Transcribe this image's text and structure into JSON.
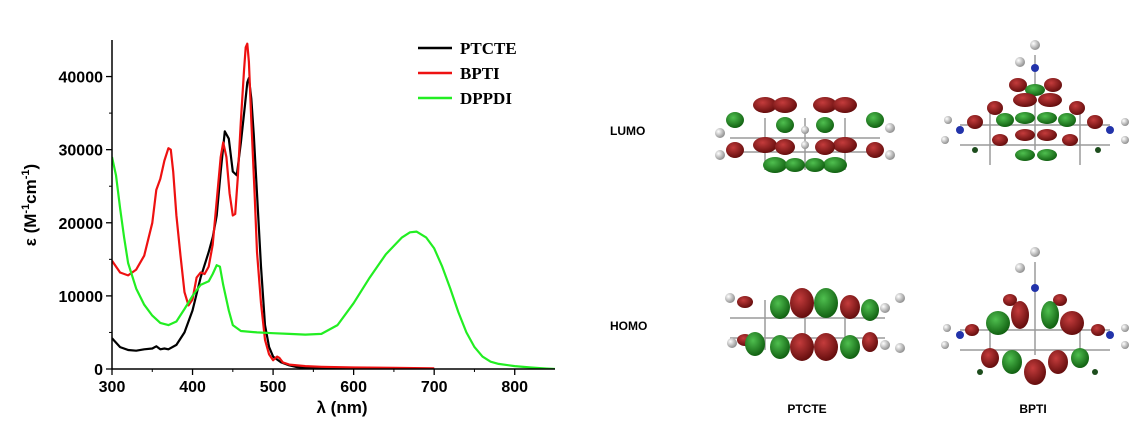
{
  "chart_data": {
    "type": "line",
    "xlabel_symbol": "λ",
    "xlabel_unit": " (nm)",
    "ylabel_symbol": "ε",
    "ylabel_parts": [
      "(M",
      "-1",
      "cm",
      "-1",
      ")"
    ],
    "xlim": [
      300,
      850
    ],
    "ylim": [
      0,
      45000
    ],
    "x_ticks": [
      300,
      400,
      500,
      600,
      700,
      800
    ],
    "y_ticks": [
      0,
      10000,
      20000,
      30000,
      40000
    ],
    "legend_position": "top-right",
    "grid": false,
    "series": [
      {
        "name": "PTCTE",
        "color": "#000000",
        "points": [
          [
            300,
            4200
          ],
          [
            310,
            3000
          ],
          [
            320,
            2600
          ],
          [
            330,
            2500
          ],
          [
            340,
            2700
          ],
          [
            350,
            2800
          ],
          [
            355,
            3100
          ],
          [
            360,
            2700
          ],
          [
            365,
            2800
          ],
          [
            370,
            2700
          ],
          [
            380,
            3300
          ],
          [
            390,
            5000
          ],
          [
            400,
            8000
          ],
          [
            410,
            12500
          ],
          [
            420,
            16000
          ],
          [
            425,
            18000
          ],
          [
            430,
            21000
          ],
          [
            435,
            27000
          ],
          [
            440,
            32500
          ],
          [
            445,
            31500
          ],
          [
            450,
            27000
          ],
          [
            455,
            26500
          ],
          [
            460,
            31000
          ],
          [
            465,
            36000
          ],
          [
            468,
            39200
          ],
          [
            470,
            39800
          ],
          [
            473,
            37000
          ],
          [
            476,
            32000
          ],
          [
            480,
            24000
          ],
          [
            485,
            14000
          ],
          [
            490,
            6000
          ],
          [
            495,
            3000
          ],
          [
            500,
            1700
          ],
          [
            510,
            900
          ],
          [
            520,
            500
          ],
          [
            530,
            250
          ],
          [
            540,
            150
          ],
          [
            560,
            80
          ],
          [
            600,
            50
          ],
          [
            650,
            30
          ],
          [
            700,
            20
          ]
        ]
      },
      {
        "name": "BPTI",
        "color": "#ee1111",
        "points": [
          [
            300,
            14800
          ],
          [
            310,
            13200
          ],
          [
            320,
            12800
          ],
          [
            330,
            13600
          ],
          [
            340,
            15500
          ],
          [
            350,
            20000
          ],
          [
            355,
            24500
          ],
          [
            360,
            26000
          ],
          [
            365,
            28500
          ],
          [
            370,
            30200
          ],
          [
            373,
            30000
          ],
          [
            376,
            27000
          ],
          [
            380,
            21000
          ],
          [
            385,
            15500
          ],
          [
            390,
            10500
          ],
          [
            395,
            8700
          ],
          [
            400,
            9500
          ],
          [
            405,
            12500
          ],
          [
            410,
            13200
          ],
          [
            415,
            13000
          ],
          [
            420,
            14000
          ],
          [
            425,
            17000
          ],
          [
            430,
            23000
          ],
          [
            435,
            29000
          ],
          [
            438,
            31000
          ],
          [
            442,
            29000
          ],
          [
            446,
            24000
          ],
          [
            450,
            21000
          ],
          [
            453,
            21200
          ],
          [
            456,
            26000
          ],
          [
            460,
            34000
          ],
          [
            464,
            41000
          ],
          [
            466,
            44000
          ],
          [
            468,
            44500
          ],
          [
            470,
            42000
          ],
          [
            473,
            34000
          ],
          [
            477,
            24000
          ],
          [
            480,
            16000
          ],
          [
            485,
            9000
          ],
          [
            490,
            4000
          ],
          [
            495,
            2000
          ],
          [
            500,
            1200
          ],
          [
            505,
            1700
          ],
          [
            508,
            1500
          ],
          [
            512,
            900
          ],
          [
            520,
            600
          ],
          [
            540,
            400
          ],
          [
            560,
            300
          ],
          [
            600,
            200
          ],
          [
            650,
            150
          ],
          [
            700,
            100
          ]
        ]
      },
      {
        "name": "DPPDI",
        "color": "#22ee22",
        "points": [
          [
            300,
            29000
          ],
          [
            305,
            26500
          ],
          [
            310,
            22000
          ],
          [
            315,
            18000
          ],
          [
            320,
            14500
          ],
          [
            330,
            11000
          ],
          [
            340,
            8800
          ],
          [
            350,
            7300
          ],
          [
            360,
            6300
          ],
          [
            370,
            6000
          ],
          [
            380,
            6500
          ],
          [
            390,
            8200
          ],
          [
            400,
            10000
          ],
          [
            410,
            11500
          ],
          [
            420,
            12000
          ],
          [
            425,
            13000
          ],
          [
            430,
            14200
          ],
          [
            434,
            14000
          ],
          [
            438,
            11500
          ],
          [
            445,
            8000
          ],
          [
            450,
            6000
          ],
          [
            460,
            5200
          ],
          [
            480,
            5000
          ],
          [
            500,
            4900
          ],
          [
            520,
            4800
          ],
          [
            540,
            4700
          ],
          [
            560,
            4800
          ],
          [
            580,
            6000
          ],
          [
            600,
            9000
          ],
          [
            620,
            12500
          ],
          [
            640,
            15700
          ],
          [
            660,
            18000
          ],
          [
            670,
            18700
          ],
          [
            678,
            18800
          ],
          [
            690,
            18000
          ],
          [
            700,
            16500
          ],
          [
            710,
            14000
          ],
          [
            720,
            11000
          ],
          [
            730,
            7800
          ],
          [
            740,
            5000
          ],
          [
            750,
            3000
          ],
          [
            760,
            1700
          ],
          [
            770,
            1000
          ],
          [
            780,
            700
          ],
          [
            800,
            400
          ],
          [
            820,
            200
          ],
          [
            840,
            50
          ],
          [
            850,
            0
          ]
        ]
      }
    ]
  },
  "orbitals": {
    "row_labels": [
      "LUMO",
      "HOMO"
    ],
    "column_labels": [
      "PTCTE",
      "BPTI"
    ]
  }
}
